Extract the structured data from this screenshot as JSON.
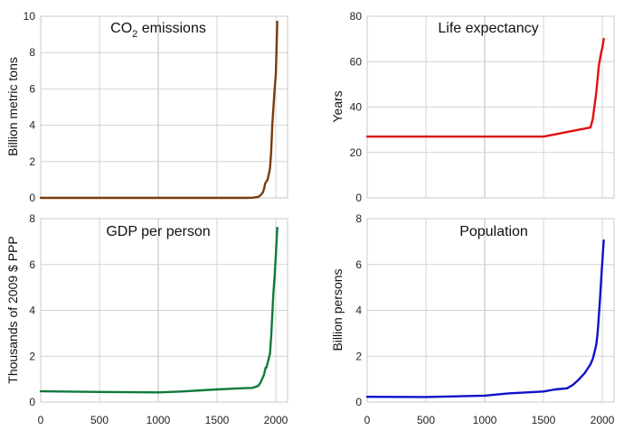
{
  "chart_data": [
    {
      "type": "line",
      "title": "CO2 emissions",
      "title_main": "CO",
      "title_sub": "2",
      "title_rest": " emissions",
      "ylabel": "Billion metric tons",
      "xlabel": "",
      "xlim": [
        0,
        2100
      ],
      "ylim": [
        0,
        10
      ],
      "yticks": [
        0,
        2,
        4,
        6,
        8,
        10
      ],
      "xticks": [
        0,
        500,
        1000,
        1500,
        2000
      ],
      "show_x_tick_labels": false,
      "grid": true,
      "color": "#7a3b0c",
      "series": [
        {
          "x": [
            0,
            1000,
            1750,
            1800,
            1850,
            1870,
            1890,
            1900,
            1910,
            1920,
            1930,
            1940,
            1950,
            1960,
            1970,
            1980,
            1990,
            2000,
            2010,
            2012
          ],
          "y": [
            0,
            0,
            0,
            0.01,
            0.05,
            0.15,
            0.3,
            0.5,
            0.8,
            0.9,
            1.0,
            1.3,
            1.6,
            2.5,
            4.0,
            5.0,
            6.0,
            6.8,
            9.1,
            9.7
          ]
        }
      ]
    },
    {
      "type": "line",
      "title": "Life expectancy",
      "ylabel": "Years",
      "xlabel": "",
      "xlim": [
        0,
        2100
      ],
      "ylim": [
        0,
        80
      ],
      "yticks": [
        0,
        20,
        40,
        60,
        80
      ],
      "xticks": [
        0,
        500,
        1000,
        1500,
        2000
      ],
      "show_x_tick_labels": false,
      "grid": true,
      "color": "#e01010",
      "series": [
        {
          "x": [
            0,
            1000,
            1500,
            1600,
            1700,
            1800,
            1900,
            1920,
            1950,
            1970,
            1990,
            2000,
            2012
          ],
          "y": [
            27,
            27,
            27,
            28,
            29,
            30,
            31,
            35,
            47,
            58,
            64,
            66,
            70
          ]
        }
      ]
    },
    {
      "type": "line",
      "title": "GDP per person",
      "ylabel": "Thousands of 2009 $ PPP",
      "xlabel": "",
      "xlim": [
        0,
        2100
      ],
      "ylim": [
        0,
        8
      ],
      "yticks": [
        0,
        2,
        4,
        6,
        8
      ],
      "xticks": [
        0,
        500,
        1000,
        1500,
        2000
      ],
      "xtick_labels": [
        "0",
        "500",
        "1000",
        "1500",
        "2000"
      ],
      "show_x_tick_labels": true,
      "grid": true,
      "color": "#0f7a3c",
      "series": [
        {
          "x": [
            0,
            500,
            1000,
            1200,
            1500,
            1700,
            1800,
            1850,
            1870,
            1900,
            1913,
            1920,
            1950,
            1960,
            1970,
            1980,
            1990,
            2000,
            2012
          ],
          "y": [
            0.47,
            0.44,
            0.42,
            0.46,
            0.55,
            0.6,
            0.62,
            0.7,
            0.85,
            1.2,
            1.5,
            1.5,
            2.1,
            2.8,
            3.8,
            4.8,
            5.5,
            6.4,
            7.6
          ]
        }
      ]
    },
    {
      "type": "line",
      "title": "Population",
      "ylabel": "Billion persons",
      "xlabel": "",
      "xlim": [
        0,
        2100
      ],
      "ylim": [
        0,
        8
      ],
      "yticks": [
        0,
        2,
        4,
        6,
        8
      ],
      "xticks": [
        0,
        500,
        1000,
        1500,
        2000
      ],
      "xtick_labels": [
        "0",
        "500",
        "1000",
        "1500",
        "2000"
      ],
      "show_x_tick_labels": true,
      "grid": true,
      "color": "#1010c8",
      "series": [
        {
          "x": [
            0,
            500,
            1000,
            1200,
            1500,
            1600,
            1700,
            1750,
            1800,
            1850,
            1900,
            1920,
            1940,
            1950,
            1960,
            1970,
            1980,
            1990,
            2000,
            2012
          ],
          "y": [
            0.23,
            0.22,
            0.28,
            0.38,
            0.46,
            0.55,
            0.6,
            0.75,
            0.98,
            1.26,
            1.65,
            1.9,
            2.3,
            2.55,
            3.0,
            3.7,
            4.45,
            5.3,
            6.1,
            7.05
          ]
        }
      ]
    }
  ]
}
